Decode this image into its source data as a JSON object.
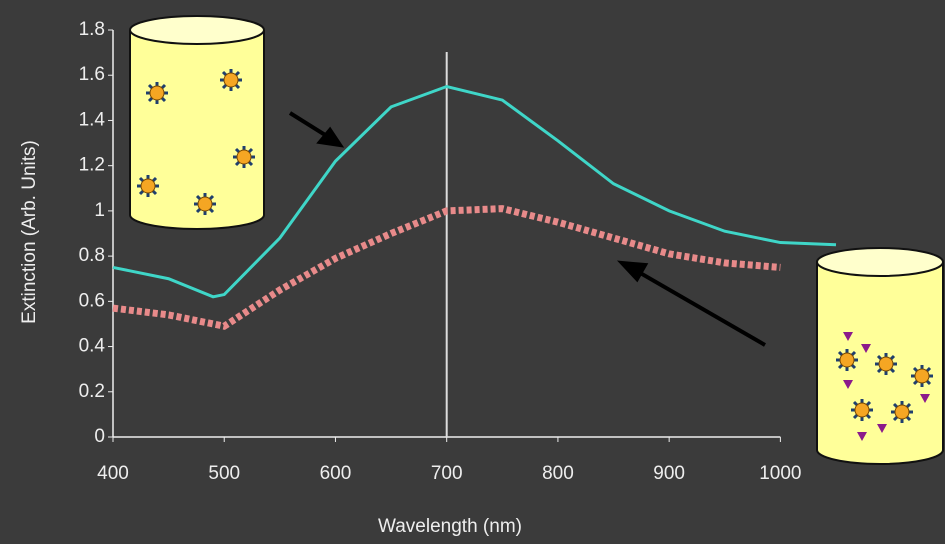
{
  "chart_data": {
    "type": "line",
    "xlabel": "Wavelength (nm)",
    "ylabel": "Extinction (Arb. Units)",
    "x": [
      400,
      450,
      490,
      500,
      550,
      600,
      650,
      700,
      750,
      800,
      850,
      900,
      950,
      1000,
      1050
    ],
    "series": [
      {
        "color": "#3fd6c8",
        "style": "solid",
        "values": [
          0.75,
          0.7,
          0.62,
          0.63,
          0.88,
          1.22,
          1.46,
          1.55,
          1.49,
          1.31,
          1.12,
          1.0,
          0.91,
          0.86,
          0.85
        ]
      },
      {
        "color": "#e88a8a",
        "style": "dotted",
        "values": [
          0.57,
          0.54,
          0.5,
          0.49,
          0.65,
          0.79,
          0.9,
          1.0,
          1.01,
          0.95,
          0.88,
          0.81,
          0.77,
          0.75,
          null
        ]
      }
    ],
    "xlim": [
      400,
      1050
    ],
    "ylim": [
      0,
      1.8
    ],
    "xticks": [
      400,
      500,
      600,
      700,
      800,
      900,
      1000
    ],
    "yticks": [
      0,
      0.2,
      0.4,
      0.6,
      0.8,
      1,
      1.2,
      1.4,
      1.6,
      1.8
    ],
    "vline": 700
  }
}
